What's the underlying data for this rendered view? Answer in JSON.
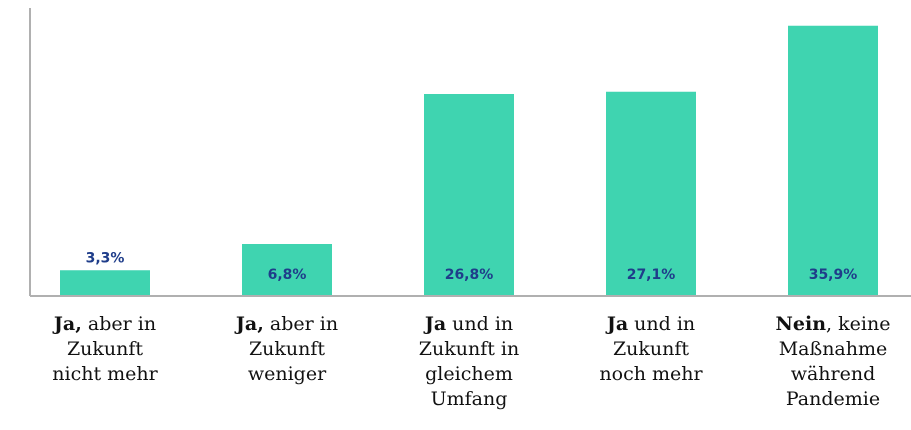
{
  "chart_data": {
    "type": "bar",
    "categories": [
      [
        [
          "Ja,",
          " aber in"
        ],
        "Zukunft",
        "nicht mehr"
      ],
      [
        [
          "Ja,",
          " aber in"
        ],
        "Zukunft",
        "weniger"
      ],
      [
        [
          "Ja",
          " und in"
        ],
        "Zukunft in",
        "gleichem",
        "Umfang"
      ],
      [
        [
          "Ja",
          " und in"
        ],
        "Zukunft",
        "noch mehr"
      ],
      [
        [
          "Nein",
          ", keine"
        ],
        "Maßnahme",
        "während",
        "Pandemie"
      ]
    ],
    "values": [
      3.3,
      6.8,
      26.8,
      27.1,
      35.9
    ],
    "value_labels": [
      "3,3%",
      "6,8%",
      "26,8%",
      "27,1%",
      "35,9%"
    ],
    "color": "#3fd4b0",
    "ylim": [
      0,
      38
    ]
  }
}
